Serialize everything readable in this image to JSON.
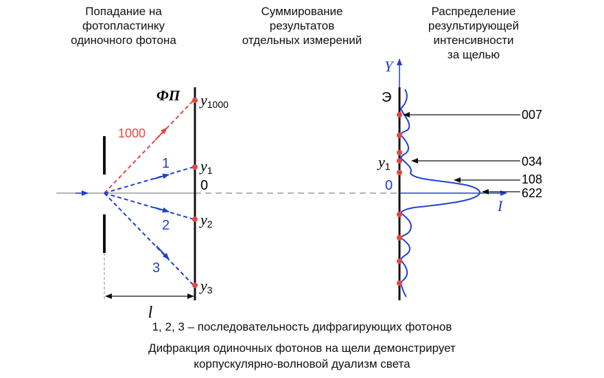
{
  "headers": {
    "left": "Попадание на\nфотопластинку\nодиночного фотона",
    "middle": "Суммирование\nрезультатов\nотдельных измерений",
    "right": "Распределение\nрезультирующей\nинтенсивности\nза щелью"
  },
  "left_panel": {
    "plate_label": "ФП",
    "y1000": "y",
    "y1000_sub": "1000",
    "y1": "y",
    "y1_sub": "1",
    "y2": "y",
    "y2_sub": "2",
    "y3": "y",
    "y3_sub": "3",
    "zero": "0",
    "ray_1000": "1000",
    "ray_1": "1",
    "ray_2": "2",
    "ray_3": "3",
    "distance": "l"
  },
  "right_panel": {
    "axis_y": "Y",
    "axis_i": "I",
    "screen_label": "Э",
    "y1": "y",
    "y1_sub": "1",
    "zero": "0",
    "counts": [
      "007",
      "034",
      "108",
      "622"
    ]
  },
  "captions": {
    "sequence": "1, 2, 3 – последовательность дифрагирующих фотонов",
    "line1": "Дифракция одиночных фотонов на щели демонстрирует",
    "line2": "корпускулярно-волновой дуализм света"
  },
  "colors": {
    "red": "#e8473f",
    "blue": "#1f3fd6",
    "black": "#111111",
    "gray": "#888888"
  }
}
